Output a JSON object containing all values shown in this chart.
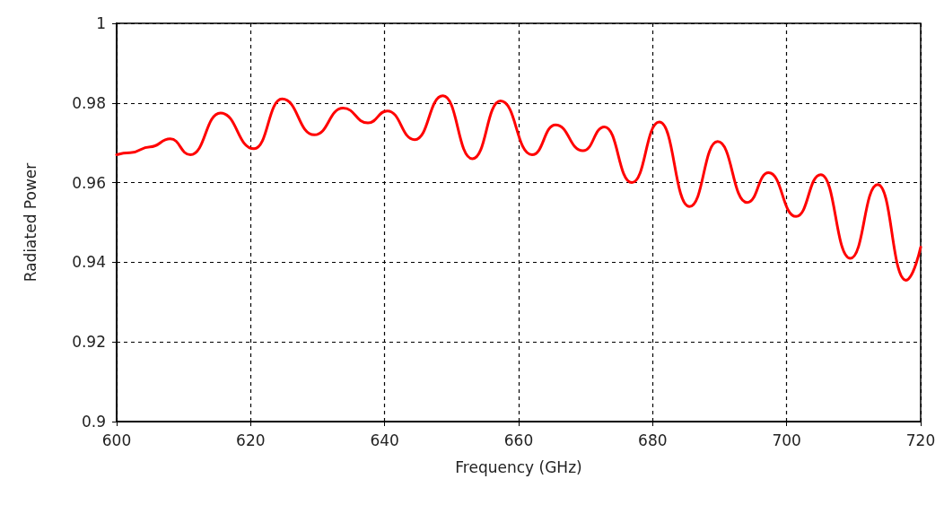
{
  "chart_data": {
    "type": "line",
    "xlabel": "Frequency (GHz)",
    "ylabel": "Radiated Power",
    "xlim": [
      600,
      720
    ],
    "xticks": [
      600,
      620,
      640,
      660,
      680,
      700,
      720
    ],
    "ylim": [
      0.9,
      1
    ],
    "yticks": [
      0.9,
      0.92,
      0.94,
      0.96,
      0.98,
      1
    ],
    "grid": true,
    "marker": "none",
    "line_style": "solid",
    "series": [
      {
        "color": "#ff0000",
        "x": [
          600,
          602,
          605,
          608,
          611,
          615.5,
          620.5,
          624.7,
          629.5,
          633.8,
          637.5,
          640.4,
          644.5,
          648.7,
          653.1,
          657.3,
          662,
          665.5,
          669.6,
          672.8,
          676.9,
          681,
          685.5,
          689.7,
          694.1,
          697.3,
          701.4,
          705.1,
          709.5,
          713.6,
          717.8,
          720
        ],
        "values": [
          0.967,
          0.9675,
          0.969,
          0.971,
          0.967,
          0.9775,
          0.9685,
          0.981,
          0.972,
          0.9787,
          0.975,
          0.978,
          0.9708,
          0.9818,
          0.966,
          0.9805,
          0.967,
          0.9745,
          0.968,
          0.974,
          0.96,
          0.9752,
          0.954,
          0.9703,
          0.955,
          0.9625,
          0.9515,
          0.962,
          0.941,
          0.9595,
          0.9355,
          0.9438
        ]
      }
    ]
  }
}
